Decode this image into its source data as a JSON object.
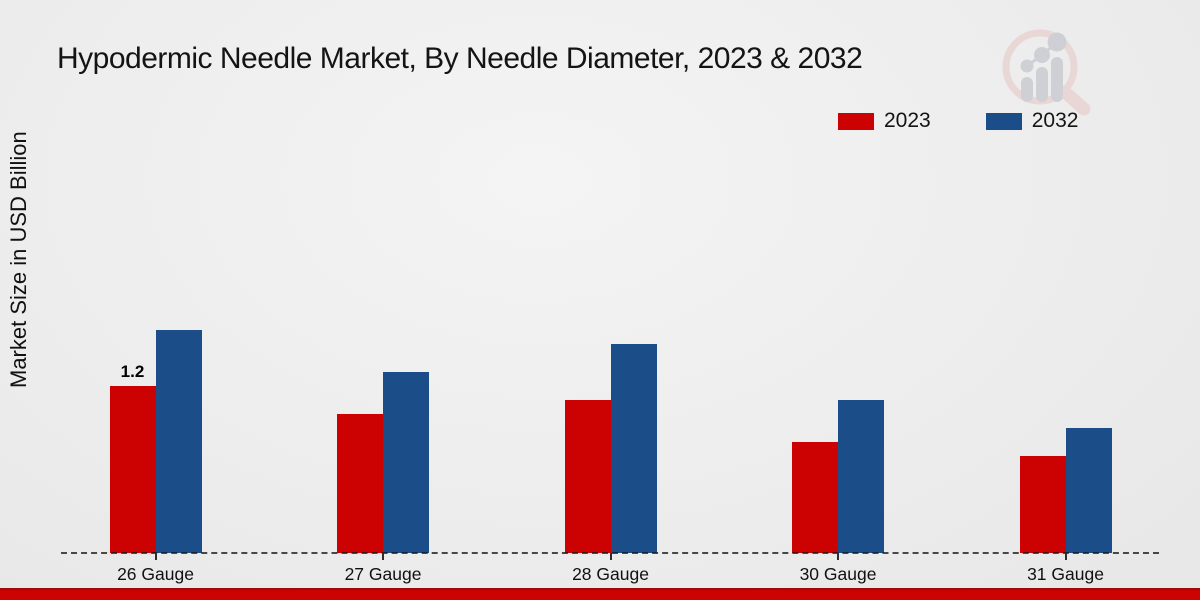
{
  "header": {
    "title": "Hypodermic Needle Market, By Needle Diameter, 2023 & 2032"
  },
  "y_axis": {
    "label": "Market Size in USD Billion"
  },
  "chart_data": {
    "type": "bar",
    "title": "Hypodermic Needle Market, By Needle Diameter, 2023 & 2032",
    "xlabel": "",
    "ylabel": "Market Size in USD Billion",
    "unit": "USD Billion",
    "categories": [
      "26 Gauge",
      "27 Gauge",
      "28 Gauge",
      "30 Gauge",
      "31 Gauge"
    ],
    "series": [
      {
        "name": "2023",
        "color": "#cc0202",
        "values": [
          1.2,
          1.0,
          1.1,
          0.8,
          0.7
        ]
      },
      {
        "name": "2032",
        "color": "#1b4e89",
        "values": [
          1.6,
          1.3,
          1.5,
          1.1,
          0.9
        ]
      }
    ],
    "annotations": [
      {
        "category": "26 Gauge",
        "series": "2023",
        "text": "1.2"
      }
    ],
    "ylim": [
      0,
      3.3
    ],
    "grid": false,
    "legend_position": "top-right",
    "baseline_style": "dashed"
  },
  "colors": {
    "series_2023": "#cc0202",
    "series_2032": "#1b4e89",
    "footer_bar": "#cb0303",
    "background": "#ededed"
  },
  "logo": {
    "name": "market-research-magnifier-chart-logo"
  }
}
